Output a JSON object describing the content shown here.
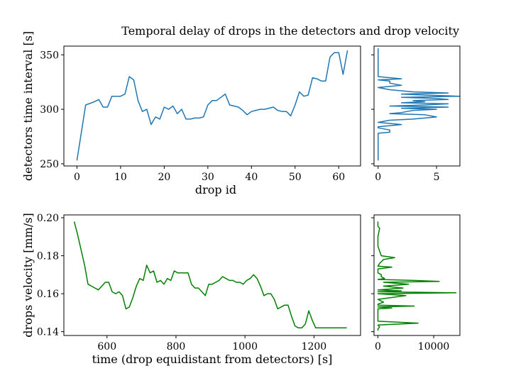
{
  "title": "Temporal delay of drops in the detectors and drop velocity",
  "chart_data": [
    {
      "panel": "top-main",
      "type": "line",
      "xlabel": "drop id",
      "ylabel": "detectors time interval [s]",
      "xlim": [
        -3,
        65
      ],
      "ylim": [
        248,
        358
      ],
      "xticks": [
        0,
        10,
        20,
        30,
        40,
        50,
        60
      ],
      "yticks": [
        250,
        300,
        350
      ],
      "color": "#1f77b4",
      "x": [
        0,
        2,
        4,
        5,
        6,
        7,
        8,
        9,
        10,
        11,
        12,
        13,
        14,
        15,
        16,
        17,
        18,
        19,
        20,
        21,
        22,
        23,
        24,
        25,
        26,
        27,
        28,
        29,
        30,
        31,
        32,
        33,
        34,
        35,
        36,
        37,
        38,
        39,
        40,
        41,
        42,
        43,
        44,
        45,
        46,
        47,
        48,
        49,
        50,
        51,
        52,
        53,
        54,
        55,
        56,
        57,
        58,
        59,
        60,
        61,
        62
      ],
      "values": [
        253,
        304,
        307,
        309,
        302,
        302,
        312,
        312,
        312,
        314,
        330,
        327,
        308,
        298,
        300,
        286,
        293,
        291,
        302,
        300,
        303,
        296,
        300,
        291,
        291,
        292,
        292,
        293,
        304,
        308,
        308,
        311,
        314,
        304,
        303,
        302,
        299,
        295,
        298,
        299,
        300,
        300,
        301,
        302,
        299,
        298,
        298,
        294,
        304,
        316,
        312,
        313,
        329,
        328,
        326,
        326,
        348,
        352,
        352,
        332,
        354
      ]
    },
    {
      "panel": "top-side",
      "type": "line",
      "orientation": "horizontal",
      "xticks": [
        0,
        5
      ],
      "xlim": [
        -0.35,
        7.0
      ],
      "ylim": [
        248,
        358
      ],
      "color": "#1f77b4",
      "y": [
        253,
        278,
        279,
        281,
        283,
        284,
        286,
        288,
        290,
        291,
        293,
        295,
        296,
        297,
        299,
        300,
        301,
        302,
        303,
        304,
        305,
        306,
        307,
        308,
        309,
        310,
        311,
        312,
        313,
        314,
        315,
        316,
        318,
        320,
        322,
        324,
        326,
        327,
        328,
        330,
        332,
        340,
        350,
        356
      ],
      "values": [
        0,
        0,
        1,
        1,
        0,
        0,
        2,
        0,
        1,
        3,
        5,
        4,
        1,
        2,
        3,
        5,
        2,
        6,
        1,
        4,
        6,
        2,
        4,
        3,
        6,
        5,
        2,
        7,
        4,
        2,
        6,
        3,
        1,
        0,
        2,
        1,
        1,
        0,
        2,
        0,
        0,
        0,
        0,
        0
      ]
    },
    {
      "panel": "bottom-main",
      "type": "line",
      "xlabel": "time (drop equidistant from detectors) [s]",
      "ylabel": "drops velocity [mm/s]",
      "xlim": [
        475,
        1335
      ],
      "ylim": [
        0.138,
        0.2015
      ],
      "xticks": [
        600,
        800,
        1000,
        1200
      ],
      "yticks": [
        0.14,
        0.16,
        0.18,
        0.2
      ],
      "ytick_labels": [
        "0.14",
        "0.16",
        "0.18",
        "0.20"
      ],
      "color": "#008000",
      "x": [
        505,
        515,
        525,
        535,
        545,
        555,
        565,
        575,
        585,
        595,
        605,
        615,
        625,
        635,
        645,
        655,
        665,
        675,
        685,
        695,
        705,
        715,
        725,
        735,
        745,
        755,
        765,
        775,
        785,
        795,
        805,
        815,
        825,
        835,
        845,
        855,
        865,
        875,
        885,
        895,
        905,
        915,
        925,
        935,
        945,
        955,
        965,
        975,
        985,
        995,
        1005,
        1015,
        1025,
        1035,
        1045,
        1055,
        1065,
        1075,
        1085,
        1095,
        1105,
        1115,
        1125,
        1135,
        1145,
        1155,
        1165,
        1175,
        1185,
        1195,
        1205,
        1215,
        1225,
        1235,
        1245,
        1255,
        1265,
        1275,
        1285,
        1295
      ],
      "values": [
        0.198,
        0.191,
        0.183,
        0.175,
        0.165,
        0.164,
        0.163,
        0.162,
        0.164,
        0.166,
        0.166,
        0.161,
        0.16,
        0.161,
        0.159,
        0.152,
        0.153,
        0.158,
        0.164,
        0.168,
        0.167,
        0.175,
        0.171,
        0.172,
        0.166,
        0.167,
        0.165,
        0.168,
        0.167,
        0.172,
        0.171,
        0.171,
        0.171,
        0.171,
        0.165,
        0.163,
        0.163,
        0.161,
        0.159,
        0.165,
        0.165,
        0.166,
        0.167,
        0.169,
        0.168,
        0.167,
        0.167,
        0.166,
        0.166,
        0.165,
        0.167,
        0.168,
        0.17,
        0.168,
        0.164,
        0.159,
        0.16,
        0.16,
        0.157,
        0.152,
        0.153,
        0.154,
        0.154,
        0.148,
        0.143,
        0.142,
        0.142,
        0.144,
        0.151,
        0.146,
        0.142,
        0.142,
        0.142,
        0.142,
        0.142,
        0.142,
        0.142,
        0.142,
        0.142,
        0.142
      ]
    },
    {
      "panel": "bottom-side",
      "type": "line",
      "orientation": "horizontal",
      "xticks": [
        0,
        10000
      ],
      "xlim": [
        -700,
        14700
      ],
      "ylim": [
        0.138,
        0.2015
      ],
      "color": "#008000",
      "y": [
        0.1405,
        0.1415,
        0.1425,
        0.1435,
        0.1445,
        0.1455,
        0.152,
        0.1525,
        0.153,
        0.1535,
        0.154,
        0.1545,
        0.1555,
        0.157,
        0.159,
        0.16,
        0.1605,
        0.161,
        0.1615,
        0.162,
        0.163,
        0.164,
        0.165,
        0.166,
        0.1665,
        0.167,
        0.1675,
        0.168,
        0.169,
        0.17,
        0.171,
        0.173,
        0.174,
        0.1745,
        0.176,
        0.178,
        0.179,
        0.18,
        0.185,
        0.19,
        0.1945,
        0.1955,
        0.1965,
        0.198
      ],
      "values": [
        0,
        0,
        300,
        0,
        7200,
        0,
        0,
        2500,
        0,
        6500,
        0,
        0,
        1000,
        0,
        5000,
        0,
        14000,
        0,
        4200,
        0,
        4500,
        1000,
        5500,
        1000,
        11000,
        6500,
        0,
        1200,
        600,
        600,
        0,
        0,
        2500,
        0,
        300,
        1000,
        3000,
        600,
        0,
        0,
        300,
        0,
        0,
        0
      ]
    }
  ]
}
